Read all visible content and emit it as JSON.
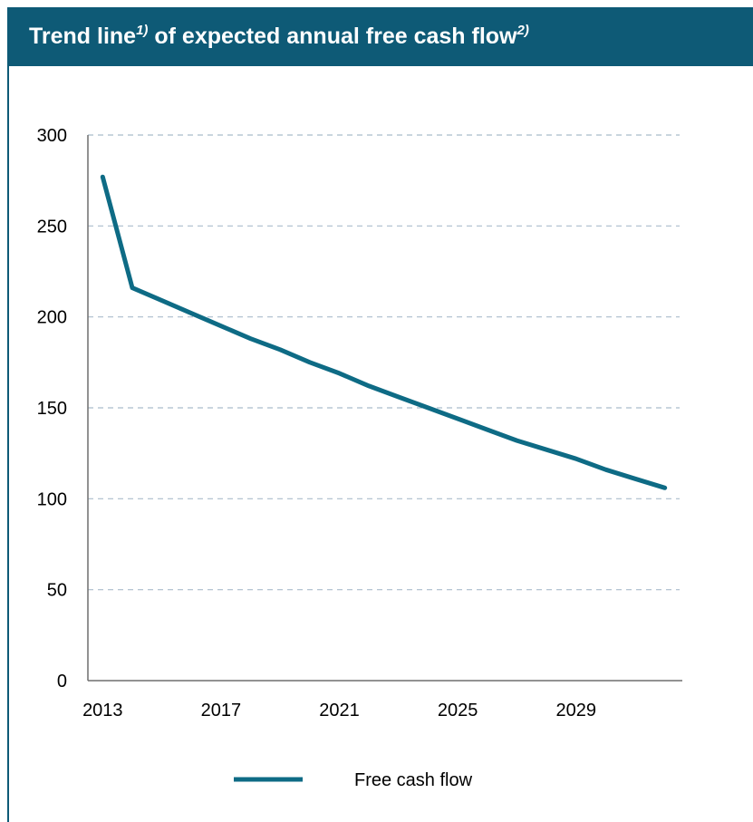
{
  "header": {
    "title_main": "Trend line",
    "footnote_1": "1)",
    "title_middle": " of expected annual free cash flow",
    "footnote_2": "2)"
  },
  "colors": {
    "header_bg": "#0e5a76",
    "line": "#0e6b85",
    "grid": "#a9bccb",
    "axis": "#6f6f6f"
  },
  "chart_data": {
    "type": "line",
    "title": "Trend line1) of expected annual free cash flow2)",
    "xlabel": "",
    "ylabel": "",
    "xlim": [
      2012.5,
      2032.5
    ],
    "ylim": [
      0,
      300
    ],
    "x_ticks": [
      2013,
      2017,
      2021,
      2025,
      2029
    ],
    "y_ticks": [
      0,
      50,
      100,
      150,
      200,
      250,
      300
    ],
    "grid": "horizontal dashed",
    "legend_position": "bottom-center",
    "series": [
      {
        "name": "Free cash flow",
        "x": [
          2013,
          2014,
          2015,
          2016,
          2017,
          2018,
          2019,
          2020,
          2021,
          2022,
          2023,
          2024,
          2025,
          2026,
          2027,
          2028,
          2029,
          2030,
          2031,
          2032
        ],
        "y": [
          277,
          216,
          209,
          202,
          195,
          188,
          182,
          175,
          169,
          162,
          156,
          150,
          144,
          138,
          132,
          127,
          122,
          116,
          111,
          106
        ]
      }
    ]
  }
}
